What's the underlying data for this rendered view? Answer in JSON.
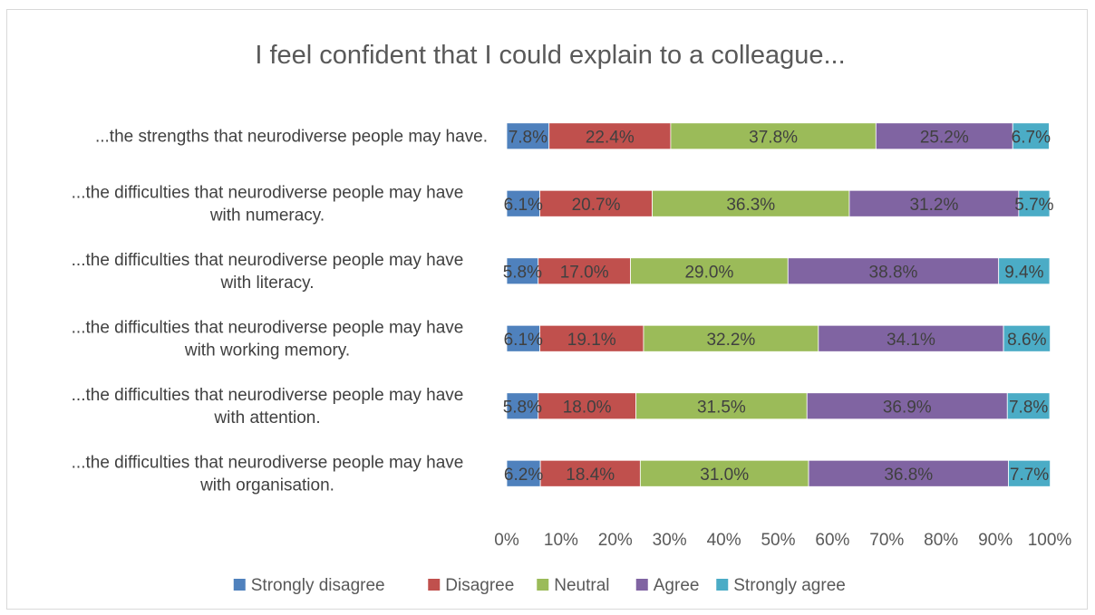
{
  "chart_data": {
    "type": "bar",
    "orientation": "horizontal",
    "stacked": "percent",
    "title": "I feel confident that I could explain to a colleague...",
    "categories": [
      [
        "...the strengths that neurodiverse people may have."
      ],
      [
        "...the difficulties that neurodiverse people may have",
        "with numeracy."
      ],
      [
        "...the difficulties that neurodiverse people may have",
        "with literacy."
      ],
      [
        "...the difficulties that neurodiverse people may have",
        "with working memory."
      ],
      [
        "...the difficulties that neurodiverse people may have",
        "with attention."
      ],
      [
        "...the difficulties that neurodiverse people may have",
        "with organisation."
      ]
    ],
    "series": [
      {
        "name": "Strongly disagree",
        "color": "#4f81bd",
        "values": [
          7.8,
          6.1,
          5.8,
          6.1,
          5.8,
          6.2
        ],
        "labels": [
          "7.8%",
          "6.1%",
          "5.8%",
          "6.1%",
          "5.8%",
          "6.2%"
        ]
      },
      {
        "name": "Disagree",
        "color": "#c0504d",
        "values": [
          22.4,
          20.7,
          17.0,
          19.1,
          18.0,
          18.4
        ],
        "labels": [
          "22.4%",
          "20.7%",
          "17.0%",
          "19.1%",
          "18.0%",
          "18.4%"
        ]
      },
      {
        "name": "Neutral",
        "color": "#9bbb59",
        "values": [
          37.8,
          36.3,
          29.0,
          32.2,
          31.5,
          31.0
        ],
        "labels": [
          "37.8%",
          "36.3%",
          "29.0%",
          "32.2%",
          "31.5%",
          "31.0%"
        ]
      },
      {
        "name": "Agree",
        "color": "#8064a2",
        "values": [
          25.2,
          31.2,
          38.8,
          34.1,
          36.9,
          36.8
        ],
        "labels": [
          "25.2%",
          "31.2%",
          "38.8%",
          "34.1%",
          "36.9%",
          "36.8%"
        ]
      },
      {
        "name": "Strongly agree",
        "color": "#4bacc6",
        "values": [
          6.7,
          5.7,
          9.4,
          8.6,
          7.8,
          7.7
        ],
        "labels": [
          "6.7%",
          "5.7%",
          "9.4%",
          "8.6%",
          "7.8%",
          "7.7%"
        ]
      }
    ],
    "xlim": [
      0,
      100
    ],
    "xticks": [
      "0%",
      "10%",
      "20%",
      "30%",
      "40%",
      "50%",
      "60%",
      "70%",
      "80%",
      "90%",
      "100%"
    ],
    "grid": false,
    "legend": "bottom"
  }
}
